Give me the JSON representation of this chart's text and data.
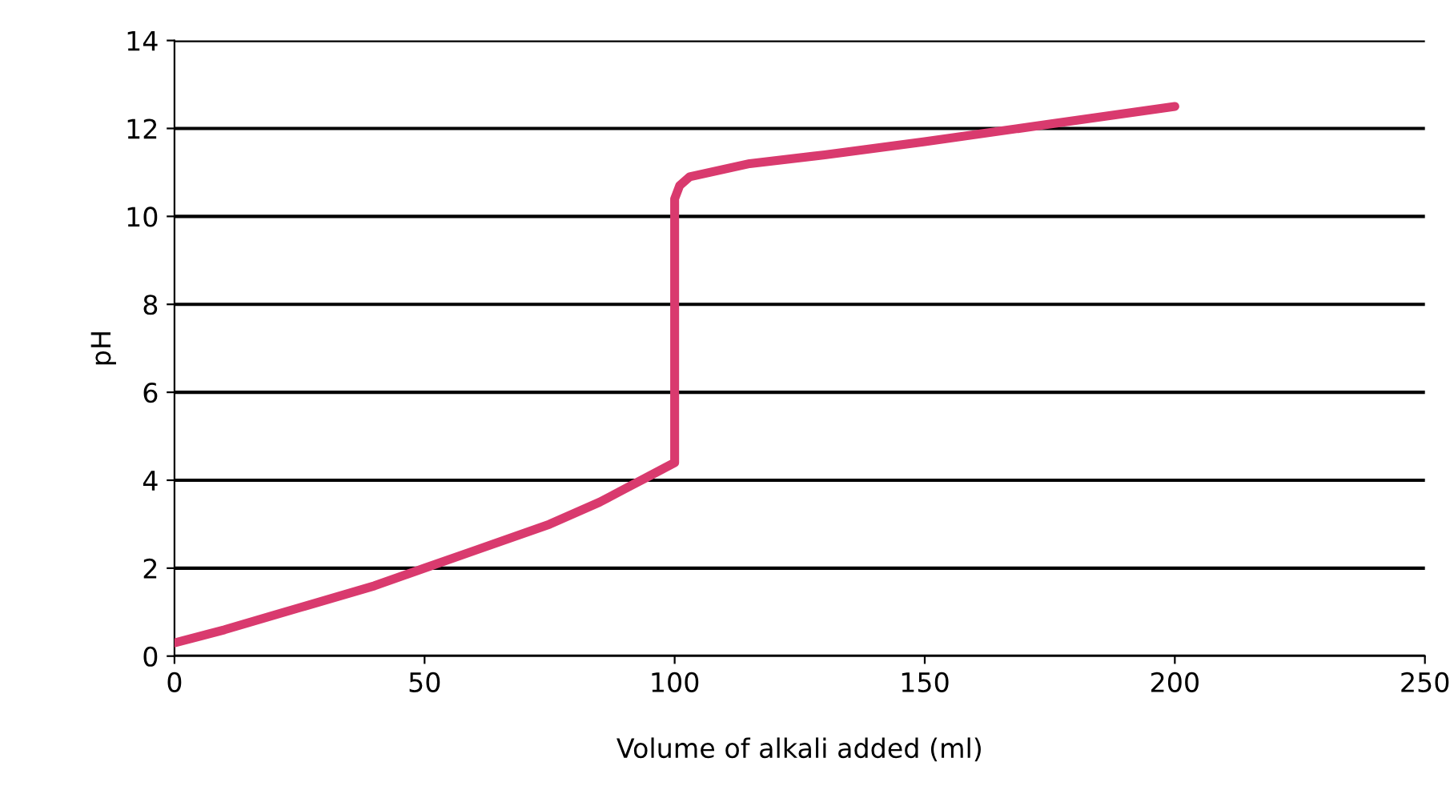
{
  "chart_data": {
    "type": "line",
    "xlabel": "Volume of alkali added (ml)",
    "ylabel": "pH",
    "series": [
      {
        "color": "#d93a6e",
        "x": [
          0,
          10,
          25,
          40,
          50,
          60,
          75,
          85,
          90,
          95,
          100,
          100,
          101,
          103,
          107,
          115,
          130,
          150,
          175,
          200
        ],
        "values": [
          0.3,
          0.6,
          1.1,
          1.6,
          2.0,
          2.4,
          3.0,
          3.5,
          3.8,
          4.1,
          4.4,
          10.4,
          10.7,
          10.9,
          11.0,
          11.2,
          11.4,
          11.7,
          12.1,
          12.5
        ]
      }
    ],
    "xlim": [
      0,
      250
    ],
    "xticks": [
      0,
      50,
      100,
      150,
      200,
      250
    ],
    "ylim": [
      0,
      14
    ],
    "yticks": [
      0,
      2,
      4,
      6,
      8,
      10,
      12,
      14
    ],
    "grid": "y",
    "marker": "none",
    "line_style": "solid"
  }
}
